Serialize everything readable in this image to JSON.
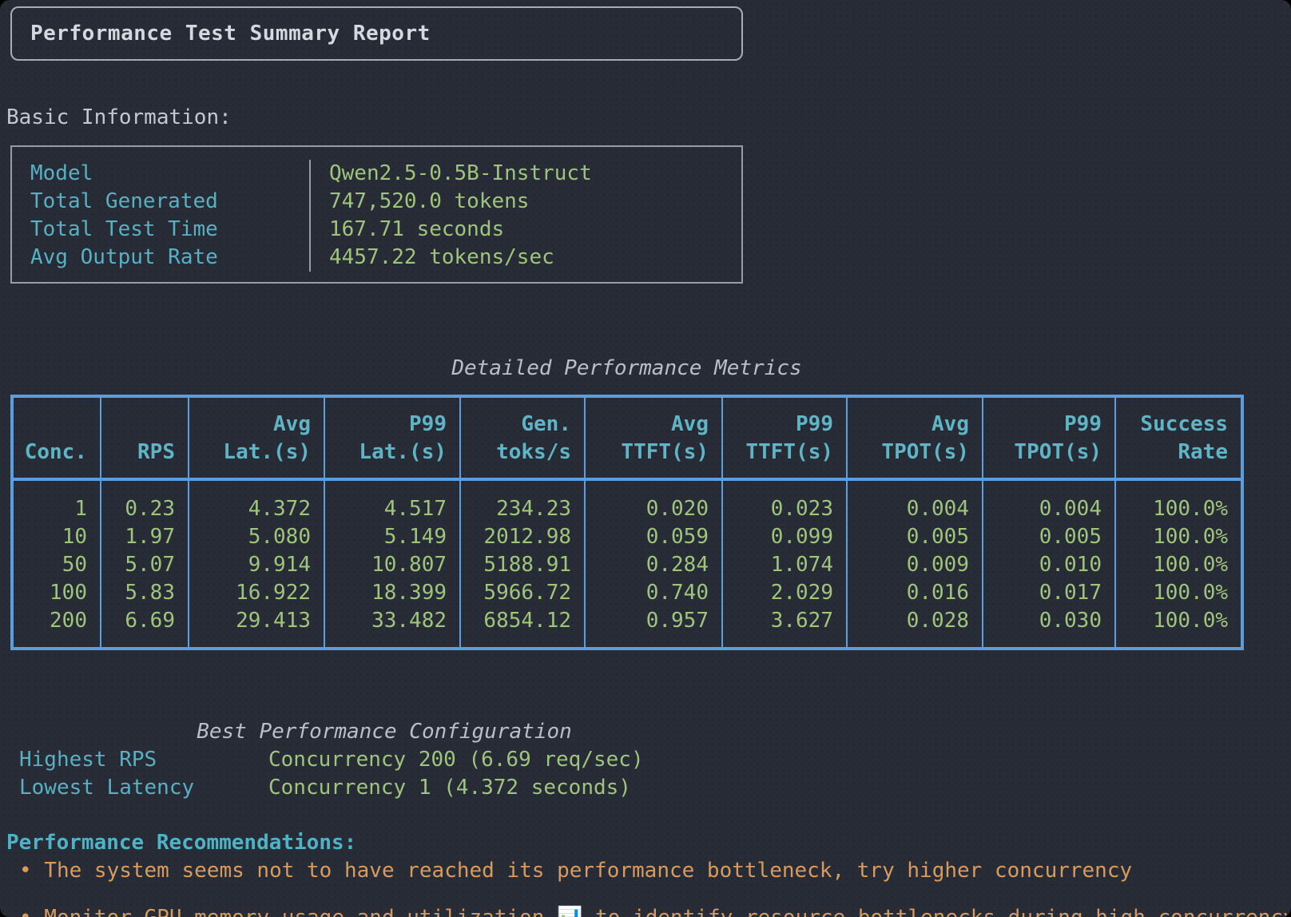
{
  "colors": {
    "background": "#282c37",
    "foreground": "#ced3da",
    "cyan": "#57b1c2",
    "green": "#9fc47c",
    "table_border_blue": "#5b9ee0",
    "panel_border_gray": "#a8adb5",
    "orange": "#d79b5f",
    "muted_italic_gray": "#b9bfc9"
  },
  "title_panel": {
    "title": "Performance Test Summary Report"
  },
  "basic_info": {
    "heading": "Basic Information:",
    "rows": [
      {
        "label": "Model",
        "value": "Qwen2.5-0.5B-Instruct"
      },
      {
        "label": "Total Generated",
        "value": "747,520.0 tokens"
      },
      {
        "label": "Total Test Time",
        "value": "167.71 seconds"
      },
      {
        "label": "Avg Output Rate",
        "value": "4457.22 tokens/sec"
      }
    ]
  },
  "metrics_table": {
    "title": "Detailed Performance Metrics",
    "columns": [
      {
        "line1": "",
        "line2": "Conc."
      },
      {
        "line1": "",
        "line2": "RPS"
      },
      {
        "line1": "Avg",
        "line2": "Lat.(s)"
      },
      {
        "line1": "P99",
        "line2": "Lat.(s)"
      },
      {
        "line1": "Gen.",
        "line2": "toks/s"
      },
      {
        "line1": "Avg",
        "line2": "TTFT(s)"
      },
      {
        "line1": "P99",
        "line2": "TTFT(s)"
      },
      {
        "line1": "Avg",
        "line2": "TPOT(s)"
      },
      {
        "line1": "P99",
        "line2": "TPOT(s)"
      },
      {
        "line1": "Success",
        "line2": "Rate"
      }
    ],
    "rows": [
      [
        "1",
        "0.23",
        "4.372",
        "4.517",
        "234.23",
        "0.020",
        "0.023",
        "0.004",
        "0.004",
        "100.0%"
      ],
      [
        "10",
        "1.97",
        "5.080",
        "5.149",
        "2012.98",
        "0.059",
        "0.099",
        "0.005",
        "0.005",
        "100.0%"
      ],
      [
        "50",
        "5.07",
        "9.914",
        "10.807",
        "5188.91",
        "0.284",
        "1.074",
        "0.009",
        "0.010",
        "100.0%"
      ],
      [
        "100",
        "5.83",
        "16.922",
        "18.399",
        "5966.72",
        "0.740",
        "2.029",
        "0.016",
        "0.017",
        "100.0%"
      ],
      [
        "200",
        "6.69",
        "29.413",
        "33.482",
        "6854.12",
        "0.957",
        "3.627",
        "0.028",
        "0.030",
        "100.0%"
      ]
    ]
  },
  "best_config": {
    "title": "Best Performance Configuration",
    "rows": [
      {
        "label": "Highest RPS",
        "value": "Concurrency 200 (6.69 req/sec)"
      },
      {
        "label": "Lowest Latency",
        "value": "Concurrency 1 (4.372 seconds)"
      }
    ]
  },
  "recommendations": {
    "heading": "Performance Recommendations:",
    "items": [
      "• The system seems not to have reached its performance bottleneck, try higher concurrency"
    ],
    "clipped_partial_line_text": "• Monitor GPU memory usage and utilization 📊 to identify resource bottlenecks during high concurrency tests"
  }
}
